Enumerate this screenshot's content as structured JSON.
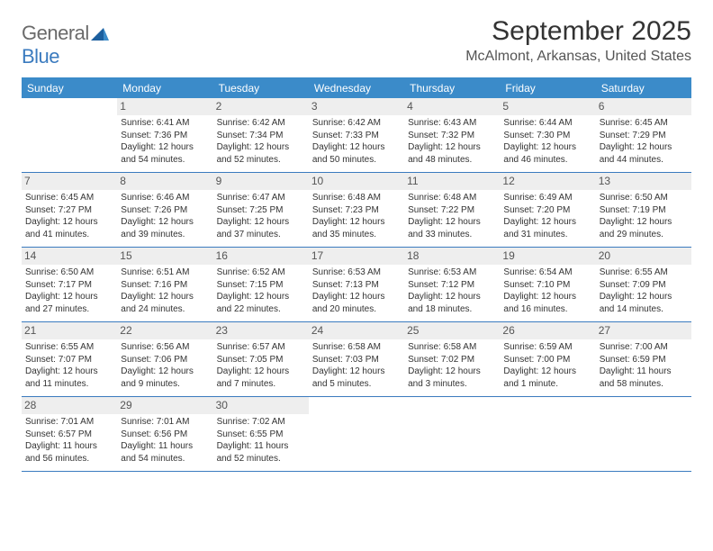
{
  "logo": {
    "general": "General",
    "blue": "Blue"
  },
  "title": "September 2025",
  "location": "McAlmont, Arkansas, United States",
  "weekdays": [
    "Sunday",
    "Monday",
    "Tuesday",
    "Wednesday",
    "Thursday",
    "Friday",
    "Saturday"
  ],
  "colors": {
    "header_bg": "#3b8bc9",
    "accent": "#3b7bbf",
    "daynum_bg": "#eeeeee",
    "text": "#333333"
  },
  "weeks": [
    [
      {
        "n": "",
        "sr": "",
        "ss": "",
        "dl1": "",
        "dl2": "",
        "empty": true
      },
      {
        "n": "1",
        "sr": "Sunrise: 6:41 AM",
        "ss": "Sunset: 7:36 PM",
        "dl1": "Daylight: 12 hours",
        "dl2": "and 54 minutes."
      },
      {
        "n": "2",
        "sr": "Sunrise: 6:42 AM",
        "ss": "Sunset: 7:34 PM",
        "dl1": "Daylight: 12 hours",
        "dl2": "and 52 minutes."
      },
      {
        "n": "3",
        "sr": "Sunrise: 6:42 AM",
        "ss": "Sunset: 7:33 PM",
        "dl1": "Daylight: 12 hours",
        "dl2": "and 50 minutes."
      },
      {
        "n": "4",
        "sr": "Sunrise: 6:43 AM",
        "ss": "Sunset: 7:32 PM",
        "dl1": "Daylight: 12 hours",
        "dl2": "and 48 minutes."
      },
      {
        "n": "5",
        "sr": "Sunrise: 6:44 AM",
        "ss": "Sunset: 7:30 PM",
        "dl1": "Daylight: 12 hours",
        "dl2": "and 46 minutes."
      },
      {
        "n": "6",
        "sr": "Sunrise: 6:45 AM",
        "ss": "Sunset: 7:29 PM",
        "dl1": "Daylight: 12 hours",
        "dl2": "and 44 minutes."
      }
    ],
    [
      {
        "n": "7",
        "sr": "Sunrise: 6:45 AM",
        "ss": "Sunset: 7:27 PM",
        "dl1": "Daylight: 12 hours",
        "dl2": "and 41 minutes."
      },
      {
        "n": "8",
        "sr": "Sunrise: 6:46 AM",
        "ss": "Sunset: 7:26 PM",
        "dl1": "Daylight: 12 hours",
        "dl2": "and 39 minutes."
      },
      {
        "n": "9",
        "sr": "Sunrise: 6:47 AM",
        "ss": "Sunset: 7:25 PM",
        "dl1": "Daylight: 12 hours",
        "dl2": "and 37 minutes."
      },
      {
        "n": "10",
        "sr": "Sunrise: 6:48 AM",
        "ss": "Sunset: 7:23 PM",
        "dl1": "Daylight: 12 hours",
        "dl2": "and 35 minutes."
      },
      {
        "n": "11",
        "sr": "Sunrise: 6:48 AM",
        "ss": "Sunset: 7:22 PM",
        "dl1": "Daylight: 12 hours",
        "dl2": "and 33 minutes."
      },
      {
        "n": "12",
        "sr": "Sunrise: 6:49 AM",
        "ss": "Sunset: 7:20 PM",
        "dl1": "Daylight: 12 hours",
        "dl2": "and 31 minutes."
      },
      {
        "n": "13",
        "sr": "Sunrise: 6:50 AM",
        "ss": "Sunset: 7:19 PM",
        "dl1": "Daylight: 12 hours",
        "dl2": "and 29 minutes."
      }
    ],
    [
      {
        "n": "14",
        "sr": "Sunrise: 6:50 AM",
        "ss": "Sunset: 7:17 PM",
        "dl1": "Daylight: 12 hours",
        "dl2": "and 27 minutes."
      },
      {
        "n": "15",
        "sr": "Sunrise: 6:51 AM",
        "ss": "Sunset: 7:16 PM",
        "dl1": "Daylight: 12 hours",
        "dl2": "and 24 minutes."
      },
      {
        "n": "16",
        "sr": "Sunrise: 6:52 AM",
        "ss": "Sunset: 7:15 PM",
        "dl1": "Daylight: 12 hours",
        "dl2": "and 22 minutes."
      },
      {
        "n": "17",
        "sr": "Sunrise: 6:53 AM",
        "ss": "Sunset: 7:13 PM",
        "dl1": "Daylight: 12 hours",
        "dl2": "and 20 minutes."
      },
      {
        "n": "18",
        "sr": "Sunrise: 6:53 AM",
        "ss": "Sunset: 7:12 PM",
        "dl1": "Daylight: 12 hours",
        "dl2": "and 18 minutes."
      },
      {
        "n": "19",
        "sr": "Sunrise: 6:54 AM",
        "ss": "Sunset: 7:10 PM",
        "dl1": "Daylight: 12 hours",
        "dl2": "and 16 minutes."
      },
      {
        "n": "20",
        "sr": "Sunrise: 6:55 AM",
        "ss": "Sunset: 7:09 PM",
        "dl1": "Daylight: 12 hours",
        "dl2": "and 14 minutes."
      }
    ],
    [
      {
        "n": "21",
        "sr": "Sunrise: 6:55 AM",
        "ss": "Sunset: 7:07 PM",
        "dl1": "Daylight: 12 hours",
        "dl2": "and 11 minutes."
      },
      {
        "n": "22",
        "sr": "Sunrise: 6:56 AM",
        "ss": "Sunset: 7:06 PM",
        "dl1": "Daylight: 12 hours",
        "dl2": "and 9 minutes."
      },
      {
        "n": "23",
        "sr": "Sunrise: 6:57 AM",
        "ss": "Sunset: 7:05 PM",
        "dl1": "Daylight: 12 hours",
        "dl2": "and 7 minutes."
      },
      {
        "n": "24",
        "sr": "Sunrise: 6:58 AM",
        "ss": "Sunset: 7:03 PM",
        "dl1": "Daylight: 12 hours",
        "dl2": "and 5 minutes."
      },
      {
        "n": "25",
        "sr": "Sunrise: 6:58 AM",
        "ss": "Sunset: 7:02 PM",
        "dl1": "Daylight: 12 hours",
        "dl2": "and 3 minutes."
      },
      {
        "n": "26",
        "sr": "Sunrise: 6:59 AM",
        "ss": "Sunset: 7:00 PM",
        "dl1": "Daylight: 12 hours",
        "dl2": "and 1 minute."
      },
      {
        "n": "27",
        "sr": "Sunrise: 7:00 AM",
        "ss": "Sunset: 6:59 PM",
        "dl1": "Daylight: 11 hours",
        "dl2": "and 58 minutes."
      }
    ],
    [
      {
        "n": "28",
        "sr": "Sunrise: 7:01 AM",
        "ss": "Sunset: 6:57 PM",
        "dl1": "Daylight: 11 hours",
        "dl2": "and 56 minutes."
      },
      {
        "n": "29",
        "sr": "Sunrise: 7:01 AM",
        "ss": "Sunset: 6:56 PM",
        "dl1": "Daylight: 11 hours",
        "dl2": "and 54 minutes."
      },
      {
        "n": "30",
        "sr": "Sunrise: 7:02 AM",
        "ss": "Sunset: 6:55 PM",
        "dl1": "Daylight: 11 hours",
        "dl2": "and 52 minutes."
      },
      {
        "n": "",
        "sr": "",
        "ss": "",
        "dl1": "",
        "dl2": "",
        "empty": true
      },
      {
        "n": "",
        "sr": "",
        "ss": "",
        "dl1": "",
        "dl2": "",
        "empty": true
      },
      {
        "n": "",
        "sr": "",
        "ss": "",
        "dl1": "",
        "dl2": "",
        "empty": true
      },
      {
        "n": "",
        "sr": "",
        "ss": "",
        "dl1": "",
        "dl2": "",
        "empty": true
      }
    ]
  ]
}
